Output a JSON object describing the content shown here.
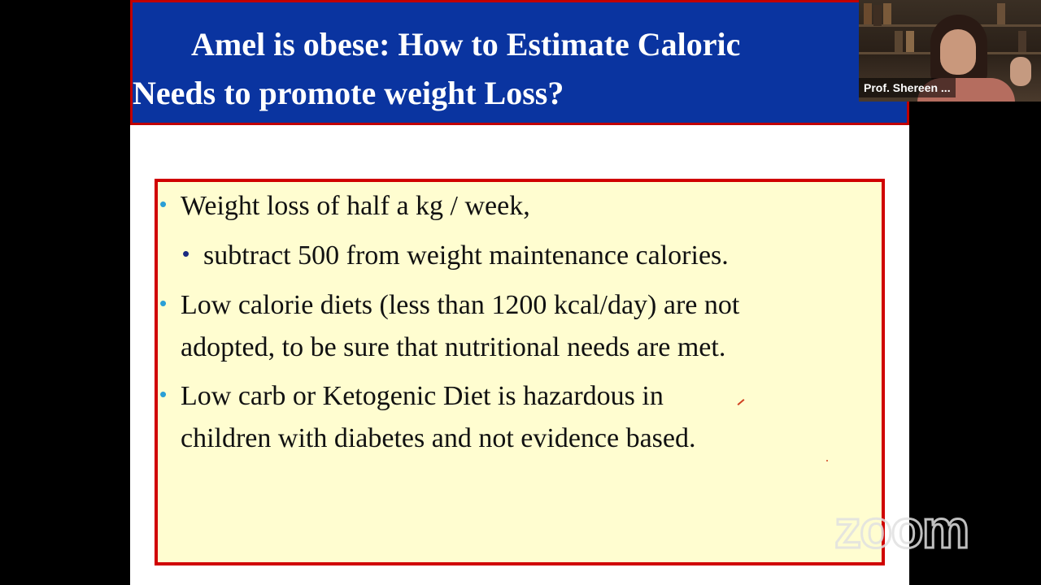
{
  "slide": {
    "title_line1": "Amel is obese: How to Estimate Caloric",
    "title_line2": "Needs to promote weight Loss?",
    "bullets": [
      {
        "text": "Weight loss of  half  a kg / week,"
      },
      {
        "text": "subtract 500 from weight maintenance calories."
      },
      {
        "text_line1": "Low calorie diets (less than 1200 kcal/day) are not",
        "text_line2": "adopted, to be sure that nutritional needs are met."
      },
      {
        "text_line1": "Low carb or Ketogenic Diet is hazardous in",
        "text_line2": "children with diabetes and not evidence based."
      }
    ],
    "colors": {
      "title_bg": "#0a34a0",
      "border": "#d00000",
      "box_bg": "#fffdd0",
      "bullet": "#2a9fd6"
    }
  },
  "video": {
    "participant_name": "Prof. Shereen ..."
  },
  "watermark": {
    "text": "zoom"
  }
}
